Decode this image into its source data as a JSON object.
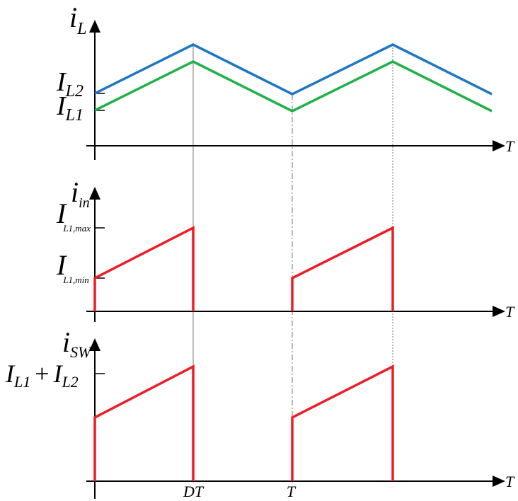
{
  "panels": [
    {
      "y_label": {
        "main": "i",
        "sub": "L"
      },
      "levels": [
        {
          "main": "I",
          "sub": "L2"
        },
        {
          "main": "I",
          "sub": "L1"
        }
      ],
      "x_label": "T"
    },
    {
      "y_label": {
        "main": "i",
        "sub": "in"
      },
      "levels": [
        {
          "main": "I",
          "sub": "L1,max"
        },
        {
          "main": "I",
          "sub": "L1,min"
        }
      ],
      "x_label": "T"
    },
    {
      "y_label": {
        "main": "i",
        "sub": "SW"
      },
      "levels": [
        {
          "main": "I",
          "sub": "L1",
          "plus": "+",
          "main2": "I",
          "sub2": "L2"
        }
      ],
      "x_label": "T",
      "time_labels": [
        "DT",
        "T"
      ]
    }
  ]
}
